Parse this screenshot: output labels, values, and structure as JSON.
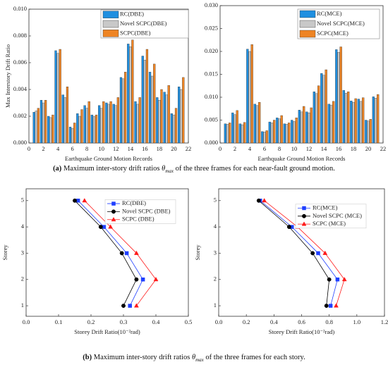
{
  "chart_data": [
    {
      "type": "bar",
      "x_label": "Earthquake Ground Motion Records",
      "y_label": "Max Interstory Drift Ratio",
      "x": [
        1,
        2,
        3,
        4,
        5,
        6,
        7,
        8,
        9,
        10,
        11,
        12,
        13,
        14,
        15,
        16,
        17,
        18,
        19,
        20,
        21
      ],
      "series": [
        {
          "name": "RC(DBE)",
          "color": "#1f8fe0",
          "values": [
            0.0023,
            0.0032,
            0.002,
            0.0069,
            0.0036,
            0.0012,
            0.0022,
            0.0028,
            0.0021,
            0.0028,
            0.003,
            0.0029,
            0.0049,
            0.0074,
            0.0031,
            0.0065,
            0.0053,
            0.0034,
            0.0038,
            0.0022,
            0.0042
          ]
        },
        {
          "name": "Novel SCPC(DBE)",
          "color": "#c8c8c8",
          "values": [
            0.0024,
            0.003,
            0.0019,
            0.0067,
            0.0034,
            0.0011,
            0.002,
            0.0026,
            0.002,
            0.0026,
            0.0029,
            0.0028,
            0.0048,
            0.0072,
            0.0029,
            0.0062,
            0.005,
            0.0032,
            0.0036,
            0.0021,
            0.004
          ]
        },
        {
          "name": "SCPC(DBE)",
          "color": "#ee8424",
          "values": [
            0.0026,
            0.0032,
            0.0021,
            0.007,
            0.0042,
            0.0015,
            0.0025,
            0.0031,
            0.0021,
            0.0031,
            0.0031,
            0.0034,
            0.0053,
            0.0077,
            0.0034,
            0.007,
            0.0059,
            0.004,
            0.0043,
            0.0026,
            0.0049
          ]
        }
      ],
      "xlim": [
        0,
        22
      ],
      "xticks": [
        0,
        2,
        4,
        6,
        8,
        10,
        12,
        14,
        16,
        18,
        20,
        22
      ],
      "ylim": [
        0,
        0.01
      ],
      "yticks": [
        {
          "value": 0,
          "label": "0.000"
        },
        0.002,
        0.004,
        0.006,
        0.008,
        {
          "value": 0.01,
          "label": "0.010"
        }
      ],
      "legend": "upper right"
    },
    {
      "type": "bar",
      "x_label": "Earthquake Ground Motion Records",
      "x": [
        1,
        2,
        3,
        4,
        5,
        6,
        7,
        8,
        9,
        10,
        11,
        12,
        13,
        14,
        15,
        16,
        17,
        18,
        19,
        20,
        21
      ],
      "series": [
        {
          "name": "RC(MCE)",
          "color": "#1f8fe0",
          "values": [
            0.0042,
            0.0066,
            0.0042,
            0.0205,
            0.0085,
            0.0025,
            0.0046,
            0.0055,
            0.0042,
            0.005,
            0.0072,
            0.0068,
            0.0112,
            0.0152,
            0.0085,
            0.0204,
            0.0115,
            0.0092,
            0.0096,
            0.005,
            0.0101
          ]
        },
        {
          "name": "Novel SCPC(MCE)",
          "color": "#c8c8c8",
          "values": [
            0.0041,
            0.0062,
            0.004,
            0.02,
            0.0082,
            0.0024,
            0.0044,
            0.0053,
            0.0041,
            0.0047,
            0.0068,
            0.0066,
            0.0108,
            0.0148,
            0.0083,
            0.0198,
            0.0109,
            0.0089,
            0.0091,
            0.0048,
            0.0098
          ]
        },
        {
          "name": "SCPC(MCE)",
          "color": "#ee8424",
          "values": [
            0.0044,
            0.0071,
            0.0045,
            0.0215,
            0.0089,
            0.0027,
            0.005,
            0.006,
            0.0044,
            0.0055,
            0.008,
            0.0077,
            0.0125,
            0.016,
            0.0091,
            0.021,
            0.0112,
            0.0097,
            0.0099,
            0.0052,
            0.0106
          ]
        }
      ],
      "xlim": [
        0,
        22
      ],
      "xticks": [
        0,
        2,
        4,
        6,
        8,
        10,
        12,
        14,
        16,
        18,
        20,
        22
      ],
      "ylim": [
        0,
        0.03
      ],
      "yticks": [
        {
          "value": 0,
          "label": "0.000"
        },
        0.005,
        {
          "value": 0.01,
          "label": "0.010"
        },
        0.015,
        {
          "value": 0.02,
          "label": "0.020"
        },
        0.025,
        {
          "value": 0.03,
          "label": "0.030"
        }
      ],
      "legend": "upper right"
    },
    {
      "type": "line",
      "x_label": "Storey Drift Ratio(10⁻²rad)",
      "y_label": "Storey",
      "y": [
        1,
        2,
        3,
        4,
        5
      ],
      "series": [
        {
          "name": "RC(DBE)",
          "color": "#1f3fff",
          "marker": "square",
          "values": [
            0.32,
            0.36,
            0.31,
            0.24,
            0.16
          ]
        },
        {
          "name": "Novel SCPC (DBE)",
          "color": "#000000",
          "marker": "circle",
          "values": [
            0.3,
            0.34,
            0.295,
            0.23,
            0.15
          ]
        },
        {
          "name": "SCPC (DBE)",
          "color": "#ff1a1a",
          "marker": "triangle",
          "values": [
            0.34,
            0.4,
            0.34,
            0.26,
            0.18
          ]
        }
      ],
      "xlim": [
        0,
        0.5
      ],
      "xticks": [
        {
          "value": 0,
          "label": "0.0"
        },
        0.1,
        0.2,
        0.3,
        0.4,
        0.5
      ],
      "ylim": [
        0.6,
        5.45
      ],
      "yticks": [
        1,
        2,
        3,
        4,
        5
      ],
      "legend": "upper right"
    },
    {
      "type": "line",
      "x_label": "Storey Drift Ratio(10⁻²rad)",
      "y_label": "Storey",
      "y": [
        1,
        2,
        3,
        4,
        5
      ],
      "series": [
        {
          "name": "RC(MCE)",
          "color": "#1f3fff",
          "marker": "square",
          "values": [
            0.81,
            0.86,
            0.72,
            0.53,
            0.3
          ]
        },
        {
          "name": "Novel SCPC (MCE)",
          "color": "#000000",
          "marker": "circle",
          "values": [
            0.78,
            0.8,
            0.68,
            0.51,
            0.29
          ]
        },
        {
          "name": "SCPC (MCE)",
          "color": "#ff1a1a",
          "marker": "triangle",
          "values": [
            0.85,
            0.91,
            0.77,
            0.57,
            0.33
          ]
        }
      ],
      "xlim": [
        0,
        1.2
      ],
      "xticks": [
        {
          "value": 0,
          "label": "0.0"
        },
        0.2,
        0.4,
        0.6,
        0.8,
        {
          "value": 1,
          "label": "1.0"
        },
        1.2
      ],
      "ylim": [
        0.6,
        5.45
      ],
      "yticks": [
        1,
        2,
        3,
        4,
        5
      ],
      "legend": "upper right"
    }
  ],
  "captions": [
    {
      "label": "(a)",
      "text_before": "Maximum inter-story drift ratios",
      "symbol": "θ",
      "subscript": "max",
      "text_after": "of the three frames for each near-fault ground motion."
    },
    {
      "label": "(b)",
      "text_before": "Maximum inter-story drift ratios",
      "symbol": "θ",
      "subscript": "max",
      "text_after": "of the three frames for each story."
    }
  ]
}
